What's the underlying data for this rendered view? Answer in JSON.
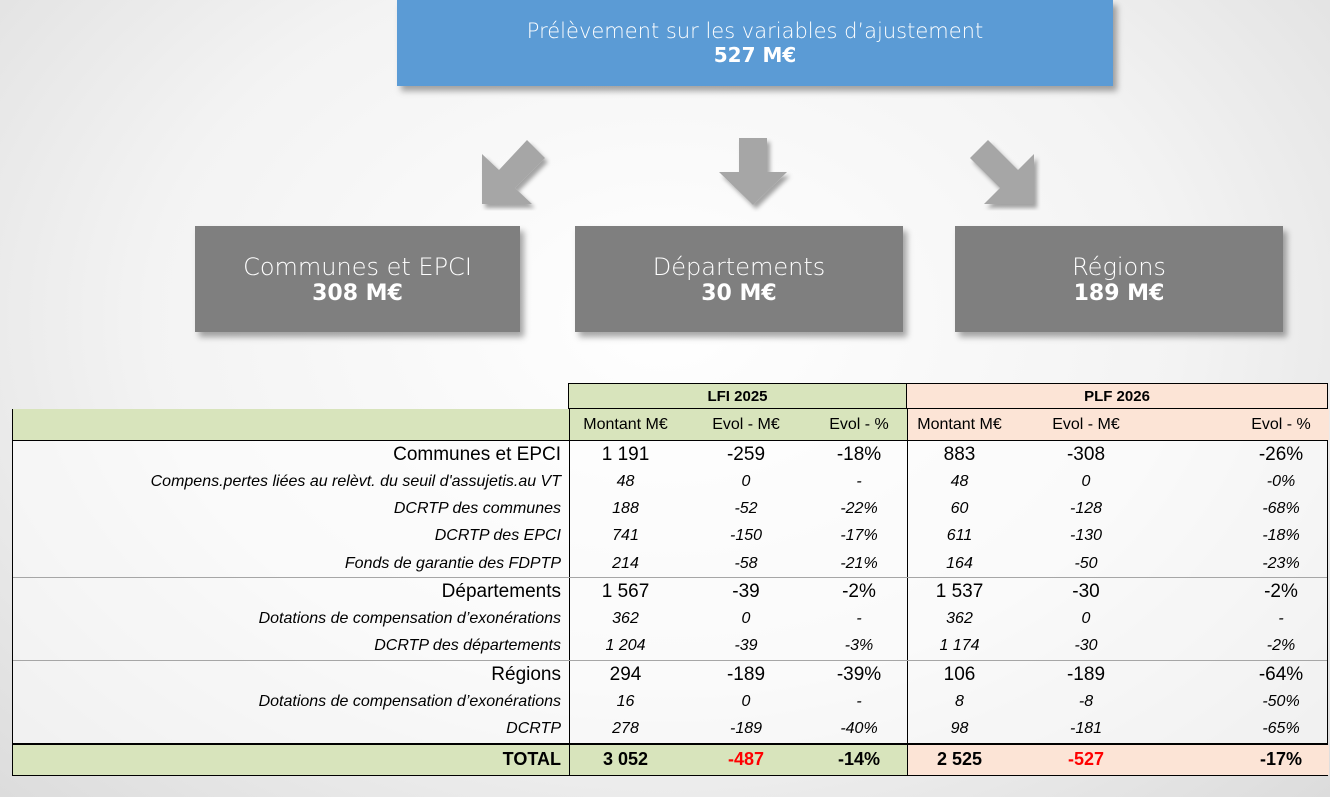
{
  "flow": {
    "top": {
      "label": "Prélèvement sur les variables d’ajustement",
      "amount": "527 M€"
    },
    "targets": [
      {
        "label": "Communes et EPCI",
        "amount": "308 M€"
      },
      {
        "label": "Départements",
        "amount": "30 M€"
      },
      {
        "label": "Régions",
        "amount": "189 M€"
      }
    ]
  },
  "table": {
    "group_headers": [
      "LFI 2025",
      "PLF 2026"
    ],
    "columns": [
      "Montant M€",
      "Evol - M€",
      "Evol - %",
      "Montant M€",
      "Evol - M€",
      "Evol - %"
    ],
    "sections": [
      {
        "row": {
          "label": "Communes et EPCI",
          "cells": [
            "1 191",
            "-259",
            "-18%",
            "883",
            "-308",
            "-26%"
          ]
        },
        "details": [
          {
            "label": "Compens.pertes liées au relèvt. du seuil d'assujetis.au VT",
            "cells": [
              "48",
              "0",
              "-",
              "48",
              "0",
              "-0%"
            ]
          },
          {
            "label": "DCRTP des communes",
            "cells": [
              "188",
              "-52",
              "-22%",
              "60",
              "-128",
              "-68%"
            ]
          },
          {
            "label": "DCRTP des EPCI",
            "cells": [
              "741",
              "-150",
              "-17%",
              "611",
              "-130",
              "-18%"
            ]
          },
          {
            "label": "Fonds de garantie des FDPTP",
            "cells": [
              "214",
              "-58",
              "-21%",
              "164",
              "-50",
              "-23%"
            ]
          }
        ]
      },
      {
        "row": {
          "label": "Départements",
          "cells": [
            "1 567",
            "-39",
            "-2%",
            "1 537",
            "-30",
            "-2%"
          ]
        },
        "details": [
          {
            "label": "Dotations de compensation d’exonérations",
            "cells": [
              "362",
              "0",
              "-",
              "362",
              "0",
              "-"
            ]
          },
          {
            "label": "DCRTP des départements",
            "cells": [
              "1 204",
              "-39",
              "-3%",
              "1 174",
              "-30",
              "-2%"
            ]
          }
        ]
      },
      {
        "row": {
          "label": "Régions",
          "cells": [
            "294",
            "-189",
            "-39%",
            "106",
            "-189",
            "-64%"
          ]
        },
        "details": [
          {
            "label": "Dotations de compensation d’exonérations",
            "cells": [
              "16",
              "0",
              "-",
              "8",
              "-8",
              "-50%"
            ]
          },
          {
            "label": "DCRTP",
            "cells": [
              "278",
              "-189",
              "-40%",
              "98",
              "-181",
              "-65%"
            ]
          }
        ]
      }
    ],
    "total": {
      "label": "TOTAL",
      "cells": [
        "3 052",
        "-487",
        "-14%",
        "2 525",
        "-527",
        "-17%"
      ]
    }
  }
}
